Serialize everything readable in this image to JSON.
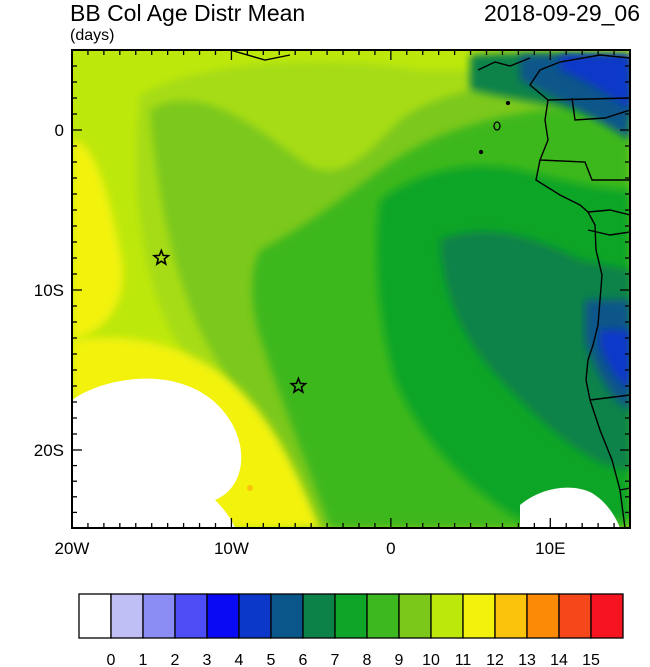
{
  "title": "BB Col Age Distr Mean",
  "units": "(days)",
  "timestamp": "2018-09-29_06",
  "lon_ticks": [
    {
      "value": -20,
      "label": "20W"
    },
    {
      "value": -10,
      "label": "10W"
    },
    {
      "value": 0,
      "label": "0"
    },
    {
      "value": 10,
      "label": "10E"
    }
  ],
  "lat_ticks": [
    {
      "value": 0,
      "label": "0"
    },
    {
      "value": -10,
      "label": "10S"
    },
    {
      "value": -20,
      "label": "20S"
    }
  ],
  "markers": [
    {
      "name": "star-marker-west",
      "lon": -14.4,
      "lat": -8.0
    },
    {
      "name": "star-marker-south",
      "lon": -5.8,
      "lat": -16.0
    }
  ],
  "colorbar": {
    "labels": [
      "0",
      "1",
      "2",
      "3",
      "4",
      "5",
      "6",
      "7",
      "8",
      "9",
      "10",
      "11",
      "12",
      "13",
      "14",
      "15"
    ],
    "colors": [
      "#ffffff",
      "#bfbff5",
      "#8c8cf5",
      "#4d4df5",
      "#0a0af5",
      "#0b38c9",
      "#0a568a",
      "#0d8248",
      "#0fa528",
      "#3db81e",
      "#7cc81a",
      "#bde80c",
      "#f2f20d",
      "#fbc30b",
      "#fb8a06",
      "#f6471a",
      "#f5141f"
    ]
  }
}
